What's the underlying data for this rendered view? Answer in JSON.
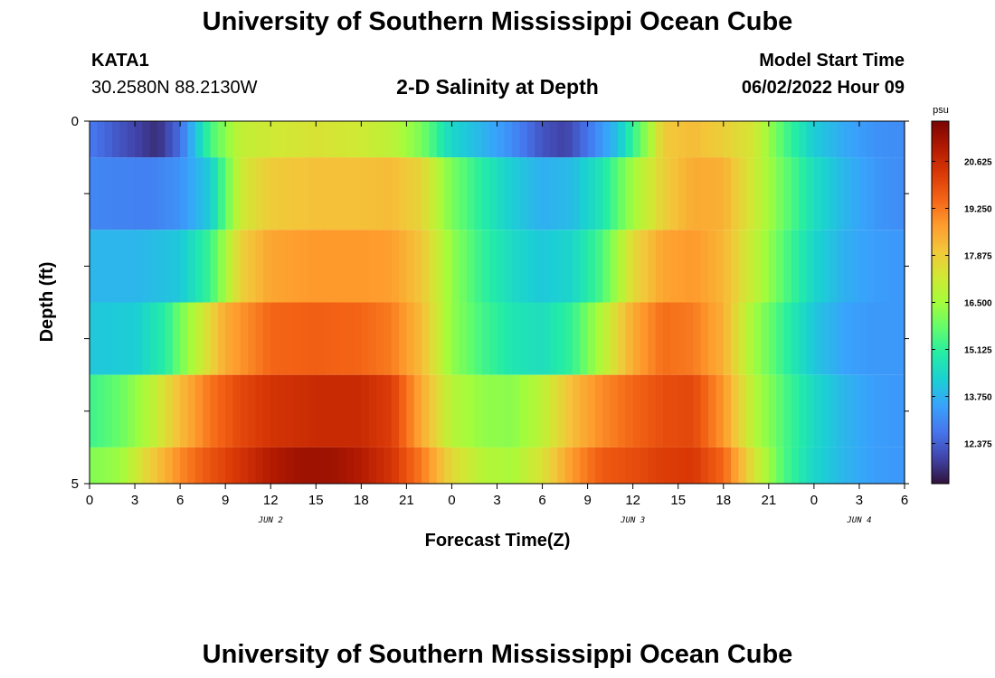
{
  "header": {
    "title": "University of Southern Mississippi Ocean Cube",
    "station_id": "KATA1",
    "coordinates": "30.2580N  88.2130W",
    "plot_title": "2-D Salinity at Depth",
    "model_start_label": "Model Start Time",
    "model_start_time": "06/02/2022 Hour 09"
  },
  "footer": {
    "title": "University of Southern Mississippi Ocean Cube"
  },
  "colors": {
    "colormap": [
      "#30123b",
      "#4145ab",
      "#4675ed",
      "#39a2fc",
      "#1bcfd4",
      "#24eca6",
      "#61fc6c",
      "#a4fc3b",
      "#d1e834",
      "#f3c63a",
      "#fe9b2d",
      "#f36315",
      "#d93806",
      "#b11901",
      "#7a0402"
    ]
  },
  "chart_data": {
    "type": "heatmap",
    "title": "2-D Salinity at Depth",
    "xlabel": "Forecast Time(Z)",
    "ylabel": "Depth (ft)",
    "x_range_hours": [
      0,
      54
    ],
    "x_tick_hours": [
      0,
      3,
      6,
      9,
      12,
      15,
      18,
      21,
      24,
      27,
      30,
      33,
      36,
      39,
      42,
      45,
      48,
      51,
      54
    ],
    "x_tick_labels": [
      "0",
      "3",
      "6",
      "9",
      "12",
      "15",
      "18",
      "21",
      "0",
      "3",
      "6",
      "9",
      "12",
      "15",
      "18",
      "21",
      "0",
      "3",
      "6"
    ],
    "day_labels": [
      {
        "label": "JUN 2",
        "hour": 12
      },
      {
        "label": "JUN 3",
        "hour": 36
      },
      {
        "label": "JUN 4",
        "hour": 51
      }
    ],
    "y_range_ft": [
      0,
      5
    ],
    "y_tick_values": [
      0,
      1,
      2,
      3,
      4,
      5
    ],
    "y_tick_labels": [
      "0",
      "",
      "",
      "",
      "",
      "5"
    ],
    "colorbar": {
      "unit": "psu",
      "min": 11.2,
      "max": 21.8,
      "tick_values": [
        12.375,
        13.75,
        15.125,
        16.5,
        17.875,
        19.25,
        20.625
      ],
      "tick_labels": [
        "12.375",
        "13.750",
        "15.125",
        "16.500",
        "17.875",
        "19.250",
        "20.625"
      ]
    },
    "layers": [
      {
        "depth_range_ft": [
          0.0,
          0.5
        ],
        "key_hours": [
          0,
          2,
          4.5,
          6,
          8,
          10,
          12,
          15,
          18,
          20,
          22,
          24,
          26,
          28,
          30,
          31.5,
          33,
          35,
          37,
          38,
          40,
          42,
          44,
          46,
          48,
          50,
          52,
          54
        ],
        "key_values": [
          12.8,
          12.2,
          11.6,
          12.6,
          15.4,
          17.0,
          17.2,
          17.4,
          17.2,
          16.9,
          16.0,
          14.4,
          13.8,
          13.1,
          12.2,
          11.9,
          12.7,
          14.0,
          16.4,
          17.9,
          18.2,
          17.8,
          17.3,
          15.5,
          14.2,
          13.6,
          13.2,
          13.1
        ]
      },
      {
        "depth_range_ft": [
          0.5,
          1.5
        ],
        "key_hours": [
          0,
          4,
          6,
          8,
          10,
          12,
          15,
          18,
          20,
          22,
          24,
          26,
          28,
          30,
          32,
          34,
          36,
          38,
          40,
          42,
          44,
          46,
          48,
          50,
          52,
          54
        ],
        "key_values": [
          13.0,
          12.9,
          13.2,
          14.2,
          17.2,
          17.9,
          18.1,
          18.1,
          18.2,
          17.7,
          16.0,
          15.0,
          14.2,
          13.7,
          13.9,
          14.8,
          16.5,
          17.8,
          18.5,
          18.4,
          17.2,
          15.8,
          14.6,
          13.8,
          13.3,
          13.1
        ]
      },
      {
        "depth_range_ft": [
          1.5,
          2.5
        ],
        "key_hours": [
          0,
          3,
          6,
          8,
          10,
          12,
          15,
          18,
          20,
          22,
          24,
          26,
          28,
          30,
          32,
          34,
          36,
          38,
          40,
          42,
          44,
          46,
          48,
          50,
          52,
          54
        ],
        "key_values": [
          13.8,
          13.8,
          14.1,
          15.3,
          17.8,
          18.6,
          18.8,
          18.8,
          18.7,
          18.0,
          16.3,
          15.2,
          14.5,
          14.1,
          14.4,
          15.5,
          17.6,
          18.6,
          18.8,
          18.3,
          17.0,
          15.6,
          14.4,
          13.7,
          13.4,
          13.3
        ]
      },
      {
        "depth_range_ft": [
          2.5,
          3.5
        ],
        "key_hours": [
          0,
          3,
          5,
          7,
          9,
          12,
          15,
          18,
          20,
          22,
          24,
          26,
          28,
          30,
          32,
          34,
          36,
          38,
          40,
          42,
          44,
          46,
          48,
          50,
          52,
          54
        ],
        "key_values": [
          14.1,
          14.2,
          15.0,
          16.8,
          18.5,
          19.5,
          19.6,
          19.5,
          19.2,
          18.2,
          16.3,
          15.4,
          14.8,
          14.6,
          15.2,
          16.8,
          18.5,
          19.4,
          19.2,
          18.4,
          16.5,
          15.2,
          14.1,
          13.5,
          13.3,
          13.3
        ]
      },
      {
        "depth_range_ft": [
          3.5,
          4.5
        ],
        "key_hours": [
          0,
          2,
          4,
          6,
          8,
          10,
          12,
          15,
          18,
          20,
          22,
          24,
          26,
          28,
          30,
          32,
          34,
          36,
          38,
          40,
          42,
          44,
          46,
          48,
          50,
          52,
          54
        ],
        "key_values": [
          15.3,
          15.8,
          16.8,
          18.2,
          19.3,
          20.0,
          20.4,
          20.6,
          20.6,
          20.2,
          18.5,
          16.8,
          16.3,
          16.2,
          16.9,
          18.2,
          19.0,
          19.5,
          19.9,
          20.0,
          18.8,
          16.8,
          15.5,
          14.5,
          13.8,
          13.4,
          13.3
        ]
      },
      {
        "depth_range_ft": [
          4.5,
          5.0
        ],
        "key_hours": [
          0,
          2,
          4,
          6,
          8,
          10,
          12,
          14,
          16,
          18,
          20,
          22,
          24,
          26,
          28,
          30,
          32,
          34,
          36,
          38,
          40,
          42,
          44,
          46,
          48,
          50,
          52,
          54
        ],
        "key_values": [
          16.1,
          16.4,
          17.8,
          19.0,
          19.8,
          20.4,
          21.0,
          21.3,
          21.3,
          21.0,
          20.4,
          19.2,
          17.6,
          16.8,
          16.6,
          17.4,
          18.8,
          19.7,
          19.9,
          20.2,
          20.3,
          19.5,
          17.4,
          15.5,
          14.4,
          13.8,
          13.4,
          13.3
        ]
      }
    ]
  }
}
